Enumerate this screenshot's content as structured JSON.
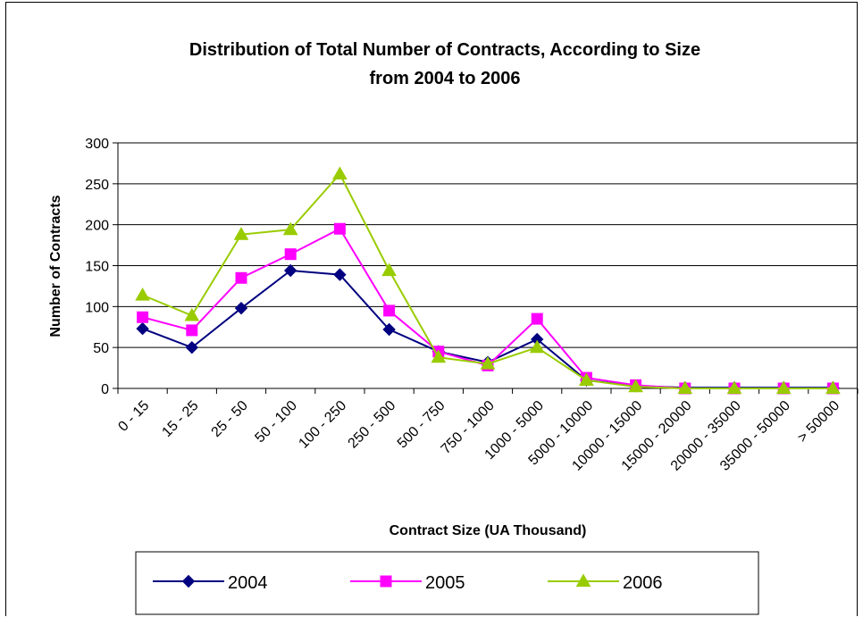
{
  "chart_data": {
    "type": "line",
    "title_line1": "Distribution of Total Number of Contracts, According to Size",
    "title_line2": "from 2004 to 2006",
    "xlabel": "Contract Size (UA Thousand)",
    "ylabel": "Number of Contracts",
    "ylim": [
      0,
      300
    ],
    "yticks": [
      0,
      50,
      100,
      150,
      200,
      250,
      300
    ],
    "grid": true,
    "legend_position": "bottom",
    "categories": [
      "0 - 15",
      "15 - 25",
      "25 - 50",
      "50 - 100",
      "100 - 250",
      "250 - 500",
      "500 - 750",
      "750 - 1000",
      "1000 - 5000",
      "5000 - 10000",
      "10000 - 15000",
      "15000 - 20000",
      "20000 - 35000",
      "35000 - 50000",
      "> 50000"
    ],
    "series": [
      {
        "name": "2004",
        "color": "#000080",
        "marker": "diamond",
        "values": [
          73,
          50,
          98,
          144,
          139,
          72,
          45,
          32,
          60,
          10,
          3,
          1,
          1,
          1,
          1
        ]
      },
      {
        "name": "2005",
        "color": "#ff00ff",
        "marker": "square",
        "values": [
          87,
          71,
          135,
          164,
          195,
          95,
          45,
          28,
          85,
          13,
          4,
          0,
          0,
          0,
          0
        ]
      },
      {
        "name": "2006",
        "color": "#99cc00",
        "marker": "triangle",
        "values": [
          114,
          89,
          188,
          194,
          262,
          144,
          38,
          30,
          50,
          10,
          2,
          0,
          0,
          0,
          0
        ]
      }
    ]
  }
}
